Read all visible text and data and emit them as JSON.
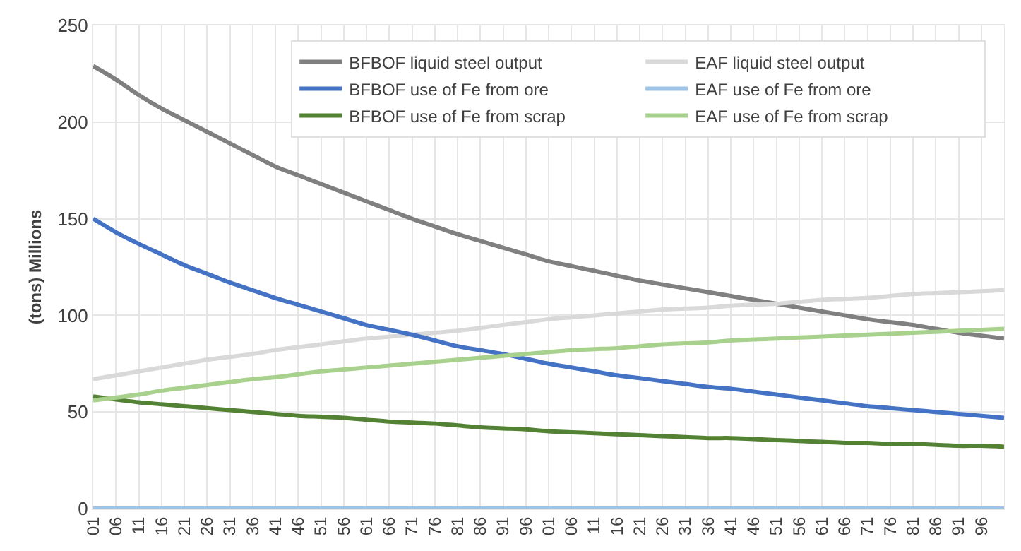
{
  "chart_data": {
    "type": "line",
    "ylabel": "(tons) Millions",
    "ylim": [
      0,
      250
    ],
    "yticks": [
      0,
      50,
      100,
      150,
      200,
      250
    ],
    "categories": [
      "01",
      "06",
      "11",
      "16",
      "21",
      "26",
      "31",
      "36",
      "41",
      "46",
      "51",
      "56",
      "61",
      "66",
      "71",
      "76",
      "81",
      "86",
      "91",
      "96",
      "01",
      "06",
      "11",
      "16",
      "21",
      "26",
      "31",
      "36",
      "41",
      "46",
      "51",
      "56",
      "61",
      "66",
      "71",
      "76",
      "81",
      "86",
      "91",
      "96",
      null
    ],
    "grid": true,
    "legend": "top right",
    "marker": "none",
    "line_style": "solid",
    "series": [
      {
        "name": "BFBOF liquid steel output",
        "color": "#808080",
        "values": [
          229,
          222,
          214,
          207,
          201,
          195,
          189,
          183,
          177,
          172.5,
          168,
          163.5,
          159,
          154.5,
          150,
          146,
          142,
          138.5,
          135,
          131.5,
          128,
          125.5,
          123,
          120.5,
          118,
          116,
          114,
          112,
          110,
          108,
          106,
          104,
          102,
          100,
          98,
          96.5,
          95,
          93,
          91,
          89.5,
          88
        ]
      },
      {
        "name": "EAF liquid steel output",
        "color": "#d9d9d9",
        "values": [
          67,
          69,
          71,
          73,
          75,
          77,
          78.5,
          80,
          82,
          83.5,
          85,
          86.5,
          88,
          89,
          90,
          91,
          92,
          93.5,
          95,
          96.5,
          98,
          99,
          100,
          101,
          102,
          103,
          103.5,
          104,
          105,
          105.5,
          106,
          107,
          108,
          108.5,
          109,
          110,
          111,
          111.5,
          112,
          112.5,
          113
        ]
      },
      {
        "name": "BFBOF use of Fe from ore",
        "color": "#4472c4",
        "values": [
          150,
          143,
          137,
          131.5,
          126,
          121.5,
          117,
          113,
          109,
          105.5,
          102,
          98.5,
          95,
          92.5,
          90,
          87,
          84,
          82,
          80,
          77.5,
          75,
          73,
          71,
          69,
          67.5,
          66,
          64.5,
          63,
          62,
          60.5,
          59,
          57.5,
          56,
          54.5,
          53,
          52,
          51,
          50,
          49,
          48,
          47
        ]
      },
      {
        "name": "EAF use of Fe from ore",
        "color": "#9dc3e6",
        "values": [
          0,
          0,
          0,
          0,
          0,
          0,
          0,
          0,
          0,
          0,
          0,
          0,
          0,
          0,
          0,
          0,
          0,
          0,
          0,
          0,
          0,
          0,
          0,
          0,
          0,
          0,
          0,
          0,
          0,
          0,
          0,
          0,
          0,
          0,
          0,
          0,
          0,
          0,
          0,
          0,
          0
        ]
      },
      {
        "name": "BFBOF use of Fe from scrap",
        "color": "#548235",
        "values": [
          58,
          56.5,
          55,
          54,
          53,
          52,
          51,
          50,
          49,
          48,
          47.5,
          47,
          46,
          45,
          44.5,
          44,
          43,
          42,
          41.5,
          41,
          40,
          39.5,
          39,
          38.5,
          38,
          37.5,
          37,
          36.5,
          36.5,
          36,
          35.5,
          35,
          34.5,
          34,
          34,
          33.5,
          33.5,
          33,
          32.5,
          32.5,
          32
        ]
      },
      {
        "name": "EAF use of Fe from scrap",
        "color": "#a9d18e",
        "values": [
          56,
          57.5,
          59,
          61,
          62.5,
          64,
          65.5,
          67,
          68,
          69.5,
          71,
          72,
          73,
          74,
          75,
          76,
          77,
          78,
          79,
          80,
          81,
          82,
          82.5,
          83,
          84,
          85,
          85.5,
          86,
          87,
          87.5,
          88,
          88.5,
          89,
          89.5,
          90,
          90.5,
          91,
          91.5,
          92,
          92.5,
          93
        ]
      }
    ]
  }
}
